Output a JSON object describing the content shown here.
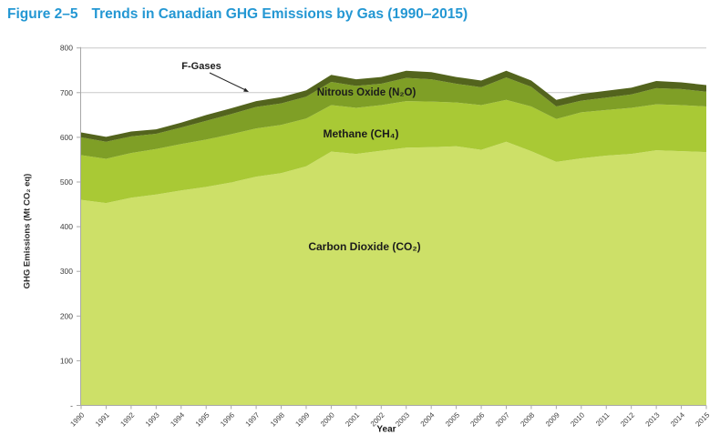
{
  "figure": {
    "label": "Figure 2–5",
    "title": "Trends in Canadian GHG Emissions by Gas (1990–2015)",
    "title_color": "#2397d3"
  },
  "chart_data": {
    "type": "area",
    "stacked": true,
    "title": "Trends in Canadian GHG Emissions by Gas (1990–2015)",
    "xlabel": "Year",
    "ylabel": "GHG Emissions (Mt CO₂ eq)",
    "ylim": [
      0,
      800
    ],
    "yticks": [
      0,
      100,
      200,
      300,
      400,
      500,
      600,
      700,
      800
    ],
    "y_zero_label": "-",
    "grid": "horizontal",
    "legend": "inline-labels",
    "x": [
      1990,
      1991,
      1992,
      1993,
      1994,
      1995,
      1996,
      1997,
      1998,
      1999,
      2000,
      2001,
      2002,
      2003,
      2004,
      2005,
      2006,
      2007,
      2008,
      2009,
      2010,
      2011,
      2012,
      2013,
      2014,
      2015
    ],
    "series": [
      {
        "name": "Carbon Dioxide (CO₂)",
        "color": "#cde068",
        "values": [
          460,
          453,
          465,
          472,
          481,
          489,
          499,
          512,
          520,
          535,
          568,
          563,
          570,
          577,
          578,
          580,
          572,
          590,
          569,
          545,
          553,
          559,
          563,
          571,
          569,
          567
        ]
      },
      {
        "name": "Methane (CH₄)",
        "color": "#a9c935",
        "values": [
          100,
          99,
          100,
          102,
          104,
          106,
          108,
          108,
          108,
          107,
          104,
          103,
          102,
          104,
          102,
          98,
          100,
          94,
          100,
          96,
          103,
          102,
          103,
          103,
          103,
          102
        ]
      },
      {
        "name": "Nitrous Oxide (N₂O)",
        "color": "#7f9f26",
        "values": [
          40,
          38,
          37,
          34,
          37,
          42,
          45,
          48,
          48,
          49,
          52,
          49,
          48,
          52,
          50,
          42,
          40,
          50,
          44,
          28,
          26,
          28,
          30,
          36,
          36,
          33
        ]
      },
      {
        "name": "F-Gases",
        "color": "#53641d",
        "values": [
          11,
          11,
          11,
          10,
          11,
          13,
          13,
          13,
          14,
          14,
          16,
          15,
          15,
          16,
          16,
          15,
          15,
          15,
          14,
          15,
          15,
          15,
          15,
          16,
          15,
          15
        ]
      }
    ],
    "totals": [
      611,
      601,
      613,
      618,
      633,
      650,
      665,
      681,
      690,
      705,
      740,
      730,
      735,
      749,
      746,
      735,
      727,
      749,
      727,
      684,
      697,
      704,
      711,
      726,
      723,
      717
    ],
    "colors": {
      "grid": "#c9c9c9",
      "axis": "#a8a8a8",
      "tick_text": "#3d3d3d",
      "annotation_arrow": "#222222"
    }
  }
}
